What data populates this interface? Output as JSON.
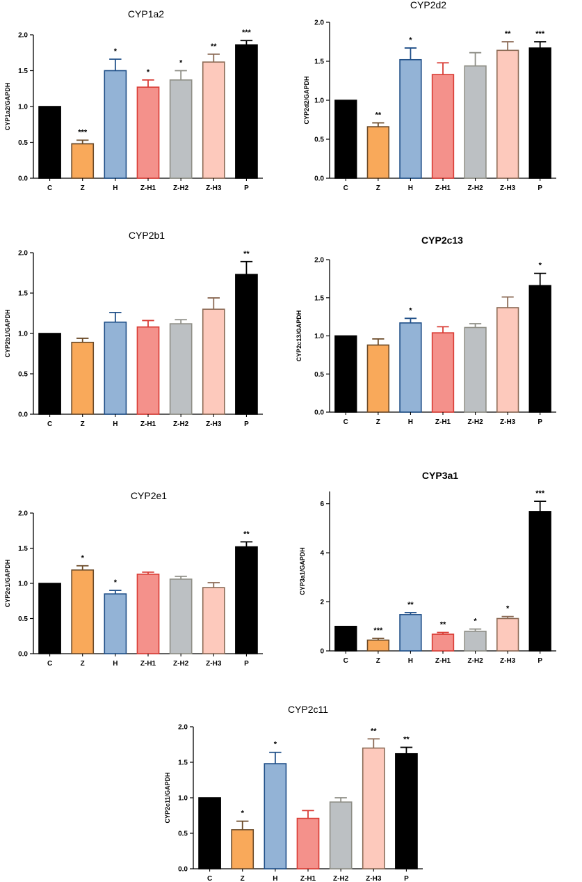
{
  "figure_colors": {
    "C": {
      "fill": "#000000",
      "stroke": "#000000"
    },
    "Z": {
      "fill": "#f9a95a",
      "stroke": "#6b4a28"
    },
    "H": {
      "fill": "#93b3d6",
      "stroke": "#1f4f88"
    },
    "Z-H1": {
      "fill": "#f4918b",
      "stroke": "#d93c35"
    },
    "Z-H2": {
      "fill": "#bcc0c3",
      "stroke": "#8e8e86"
    },
    "Z-H3": {
      "fill": "#fdc9bc",
      "stroke": "#8b6a55"
    },
    "P": {
      "fill": "#000000",
      "stroke": "#000000"
    }
  },
  "chart_data": [
    {
      "type": "bar",
      "title": "CYP1a2",
      "title_bold": false,
      "ylabel": "CYP1a2/GAPDH",
      "categories": [
        "C",
        "Z",
        "H",
        "Z-H1",
        "Z-H2",
        "Z-H3",
        "P"
      ],
      "values": [
        1.0,
        0.48,
        1.5,
        1.27,
        1.37,
        1.62,
        1.86
      ],
      "errors": [
        0.0,
        0.05,
        0.16,
        0.1,
        0.13,
        0.11,
        0.06
      ],
      "significance": [
        "",
        "***",
        "*",
        "*",
        "*",
        "**",
        "***"
      ],
      "ylim": [
        0,
        2.0
      ],
      "yticks": [
        "0.0",
        "0.5",
        "1.0",
        "1.5",
        "2.0"
      ]
    },
    {
      "type": "bar",
      "title": "CYP2d2",
      "title_bold": false,
      "ylabel": "CYP2d2/GAPDH",
      "categories": [
        "C",
        "Z",
        "H",
        "Z-H1",
        "Z-H2",
        "Z-H3",
        "P"
      ],
      "values": [
        1.0,
        0.66,
        1.52,
        1.33,
        1.44,
        1.64,
        1.67
      ],
      "errors": [
        0.0,
        0.05,
        0.15,
        0.15,
        0.17,
        0.11,
        0.08
      ],
      "significance": [
        "",
        "**",
        "*",
        "",
        "",
        "**",
        "***"
      ],
      "ylim": [
        0,
        2.0
      ],
      "yticks": [
        "0.0",
        "0.5",
        "1.0",
        "1.5",
        "2.0"
      ]
    },
    {
      "type": "bar",
      "title": "CYP2b1",
      "title_bold": false,
      "ylabel": "CYP2b1/GAPDH",
      "categories": [
        "C",
        "Z",
        "H",
        "Z-H1",
        "Z-H2",
        "Z-H3",
        "P"
      ],
      "values": [
        1.0,
        0.89,
        1.14,
        1.08,
        1.12,
        1.3,
        1.73
      ],
      "errors": [
        0.0,
        0.05,
        0.12,
        0.08,
        0.05,
        0.14,
        0.16
      ],
      "significance": [
        "",
        "",
        "",
        "",
        "",
        "",
        "**"
      ],
      "ylim": [
        0,
        2.0
      ],
      "yticks": [
        "0.0",
        "0.5",
        "1.0",
        "1.5",
        "2.0"
      ]
    },
    {
      "type": "bar",
      "title": "CYP2c13",
      "title_bold": true,
      "ylabel": "CYP2c13/GAPDH",
      "categories": [
        "C",
        "Z",
        "H",
        "Z-H1",
        "Z-H2",
        "Z-H3",
        "P"
      ],
      "values": [
        1.0,
        0.88,
        1.17,
        1.04,
        1.11,
        1.37,
        1.66
      ],
      "errors": [
        0.0,
        0.08,
        0.06,
        0.08,
        0.05,
        0.14,
        0.16
      ],
      "significance": [
        "",
        "",
        "*",
        "",
        "",
        "",
        "*"
      ],
      "ylim": [
        0,
        2.0
      ],
      "yticks": [
        "0.0",
        "0.5",
        "1.0",
        "1.5",
        "2.0"
      ]
    },
    {
      "type": "bar",
      "title": "CYP2e1",
      "title_bold": false,
      "ylabel": "CYP2e1/GAPDH",
      "categories": [
        "C",
        "Z",
        "H",
        "Z-H1",
        "Z-H2",
        "Z-H3",
        "P"
      ],
      "values": [
        1.0,
        1.19,
        0.85,
        1.13,
        1.06,
        0.94,
        1.52
      ],
      "errors": [
        0.0,
        0.06,
        0.05,
        0.03,
        0.04,
        0.07,
        0.07
      ],
      "significance": [
        "",
        "*",
        "*",
        "",
        "",
        "",
        "**"
      ],
      "ylim": [
        0,
        2.0
      ],
      "yticks": [
        "0.0",
        "0.5",
        "1.0",
        "1.5",
        "2.0"
      ]
    },
    {
      "type": "bar",
      "title": "CYP3a1",
      "title_bold": true,
      "ylabel": "CYP3a1/GAPDH",
      "categories": [
        "C",
        "Z",
        "H",
        "Z-H1",
        "Z-H2",
        "Z-H3",
        "P"
      ],
      "values": [
        1.0,
        0.44,
        1.48,
        0.68,
        0.8,
        1.32,
        5.68
      ],
      "errors": [
        0.0,
        0.07,
        0.08,
        0.07,
        0.09,
        0.08,
        0.42
      ],
      "significance": [
        "",
        "***",
        "**",
        "**",
        "*",
        "*",
        "***"
      ],
      "ylim": [
        0,
        6.5
      ],
      "yticks": [
        "0",
        "2",
        "4",
        "6"
      ],
      "ytick_values": [
        0,
        2,
        4,
        6
      ]
    },
    {
      "type": "bar",
      "title": "CYP2c11",
      "title_bold": false,
      "ylabel": "CYP2c11/GAPDH",
      "categories": [
        "C",
        "Z",
        "H",
        "Z-H1",
        "Z-H2",
        "Z-H3",
        "P"
      ],
      "values": [
        1.0,
        0.55,
        1.48,
        0.71,
        0.94,
        1.7,
        1.62
      ],
      "errors": [
        0.0,
        0.12,
        0.16,
        0.11,
        0.06,
        0.13,
        0.09
      ],
      "significance": [
        "",
        "*",
        "*",
        "",
        "",
        "**",
        "**"
      ],
      "ylim": [
        0,
        2.0
      ],
      "yticks": [
        "0.0",
        "0.5",
        "1.0",
        "1.5",
        "2.0"
      ]
    }
  ]
}
